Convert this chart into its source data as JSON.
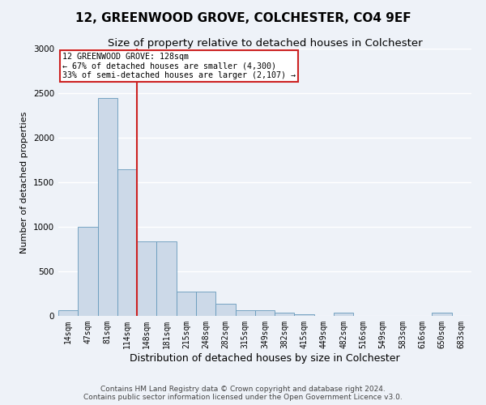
{
  "title": "12, GREENWOOD GROVE, COLCHESTER, CO4 9EF",
  "subtitle": "Size of property relative to detached houses in Colchester",
  "xlabel": "Distribution of detached houses by size in Colchester",
  "ylabel": "Number of detached properties",
  "bin_labels": [
    "14sqm",
    "47sqm",
    "81sqm",
    "114sqm",
    "148sqm",
    "181sqm",
    "215sqm",
    "248sqm",
    "282sqm",
    "315sqm",
    "349sqm",
    "382sqm",
    "415sqm",
    "449sqm",
    "482sqm",
    "516sqm",
    "549sqm",
    "583sqm",
    "616sqm",
    "650sqm",
    "683sqm"
  ],
  "bar_heights": [
    60,
    1000,
    2450,
    1650,
    840,
    840,
    270,
    270,
    140,
    60,
    60,
    40,
    20,
    0,
    35,
    0,
    0,
    0,
    0,
    35,
    0
  ],
  "bar_color": "#ccd9e8",
  "bar_edge_color": "#6699bb",
  "property_label": "12 GREENWOOD GROVE: 128sqm",
  "annotation_line1": "← 67% of detached houses are smaller (4,300)",
  "annotation_line2": "33% of semi-detached houses are larger (2,107) →",
  "vline_color": "#cc2222",
  "annotation_box_edge": "#cc2222",
  "annotation_box_face": "#ffffff",
  "ylim": [
    0,
    3000
  ],
  "yticks": [
    0,
    500,
    1000,
    1500,
    2000,
    2500,
    3000
  ],
  "footnote1": "Contains HM Land Registry data © Crown copyright and database right 2024.",
  "footnote2": "Contains public sector information licensed under the Open Government Licence v3.0.",
  "bg_color": "#eef2f8",
  "grid_color": "#ffffff",
  "title_fontsize": 11,
  "subtitle_fontsize": 9.5,
  "xlabel_fontsize": 9,
  "ylabel_fontsize": 8,
  "tick_fontsize": 7,
  "footnote_fontsize": 6.5,
  "vline_x": 3.5
}
